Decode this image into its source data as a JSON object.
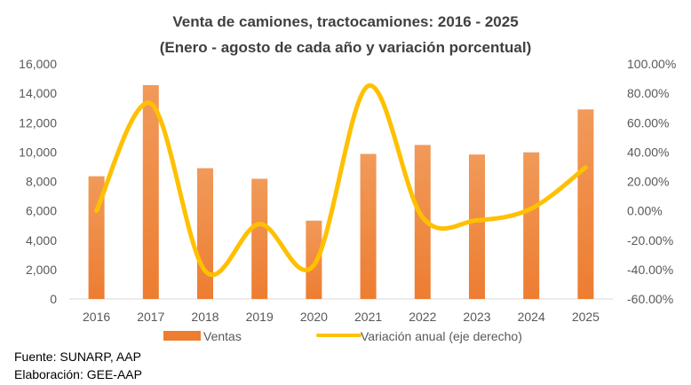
{
  "chart_data": {
    "type": "bar+line",
    "title": "Venta de camiones, tractocamiones: 2016 - 2025",
    "subtitle": "(Enero - agosto de cada año y variación porcentual)",
    "categories": [
      "2016",
      "2017",
      "2018",
      "2019",
      "2020",
      "2021",
      "2022",
      "2023",
      "2024",
      "2025"
    ],
    "series": [
      {
        "name": "Ventas",
        "type": "bar",
        "axis": "left",
        "color": "#ED7D31",
        "values": [
          8350,
          14550,
          8900,
          8180,
          5330,
          9870,
          10480,
          9830,
          9980,
          12900
        ]
      },
      {
        "name": "Variación anual (eje derecho)",
        "type": "line",
        "axis": "right",
        "color": "#FFC000",
        "values": [
          0.0,
          73.0,
          -41.0,
          -9.0,
          -37.0,
          85.0,
          -4.5,
          -6.5,
          1.5,
          29.5
        ]
      }
    ],
    "y_left": {
      "min": 0,
      "max": 16000,
      "step": 2000,
      "tick_labels": [
        "0",
        "2,000",
        "4,000",
        "6,000",
        "8,000",
        "10,000",
        "12,000",
        "14,000",
        "16,000"
      ]
    },
    "y_right": {
      "min": -60,
      "max": 100,
      "step": 20,
      "tick_labels": [
        "-60.00%",
        "-40.00%",
        "-20.00%",
        "0.00%",
        "20.00%",
        "40.00%",
        "60.00%",
        "80.00%",
        "100.00%"
      ]
    },
    "grid": false,
    "legend_position": "bottom"
  },
  "source": {
    "fuente": "Fuente: SUNARP, AAP",
    "elaboracion": "Elaboración: GEE-AAP"
  }
}
